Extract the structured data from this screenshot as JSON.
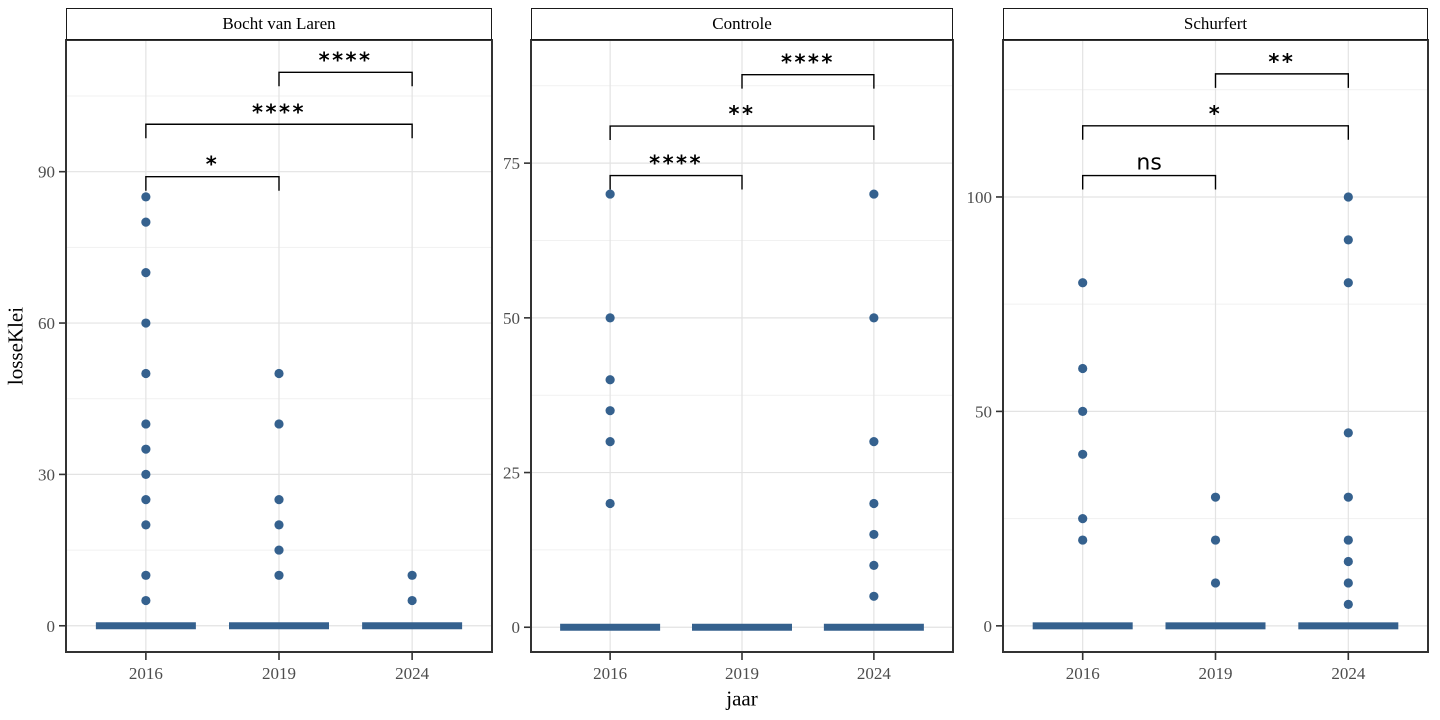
{
  "chart_data": {
    "type": "scatter",
    "title": "",
    "xlabel": "jaar",
    "ylabel": "losseKlei",
    "categories": [
      "2016",
      "2019",
      "2024"
    ],
    "legend": "none",
    "grid": "on",
    "note": "Faceted jitter plot; thick horizontal blue bar at y=0 in every year column represents many overlapping zero-valued observations; brackets show pairwise significance levels.",
    "colors": {
      "point": "#35618E",
      "grid_major": "#e3e3e3",
      "grid_minor": "#f1f1f1",
      "panel_border": "#333333",
      "bracket": "#000000",
      "tick_text": "#4d4d4d"
    },
    "facets": [
      {
        "title": "Bocht van Laren",
        "y_ticks": [
          0,
          30,
          60,
          90
        ],
        "y_minor_gridlines": [
          15,
          45,
          75,
          105
        ],
        "ylim": [
          -5.2,
          116.1
        ],
        "series": [
          {
            "year": "2016",
            "values": [
              85,
              80,
              70,
              60,
              50,
              40,
              35,
              30,
              25,
              20,
              10,
              5
            ],
            "zero_bar": true
          },
          {
            "year": "2019",
            "values": [
              50,
              40,
              25,
              20,
              15,
              10
            ],
            "zero_bar": true
          },
          {
            "year": "2024",
            "values": [
              10,
              5
            ],
            "zero_bar": true
          }
        ],
        "brackets": [
          {
            "group1": "2016",
            "group2": "2019",
            "label": "*",
            "y": 89
          },
          {
            "group1": "2016",
            "group2": "2024",
            "label": "****",
            "y": 99.4
          },
          {
            "group1": "2019",
            "group2": "2024",
            "label": "****",
            "y": 109.7
          }
        ]
      },
      {
        "title": "Controle",
        "y_ticks": [
          0,
          25,
          50,
          75
        ],
        "y_minor_gridlines": [
          12.5,
          37.5,
          62.5,
          87.5
        ],
        "ylim": [
          -4.0,
          94.9
        ],
        "series": [
          {
            "year": "2016",
            "values": [
              70,
              50,
              40,
              35,
              30,
              20
            ],
            "zero_bar": true
          },
          {
            "year": "2019",
            "values": [],
            "zero_bar": true
          },
          {
            "year": "2024",
            "values": [
              70,
              50,
              30,
              20,
              15,
              10,
              5
            ],
            "zero_bar": true
          }
        ],
        "brackets": [
          {
            "group1": "2016",
            "group2": "2019",
            "label": "****",
            "y": 73
          },
          {
            "group1": "2016",
            "group2": "2024",
            "label": "**",
            "y": 81
          },
          {
            "group1": "2019",
            "group2": "2024",
            "label": "****",
            "y": 89.3
          }
        ]
      },
      {
        "title": "Schurfert",
        "y_ticks": [
          0,
          50,
          100
        ],
        "y_minor_gridlines": [
          25,
          75,
          125
        ],
        "ylim": [
          -6.1,
          136.6
        ],
        "series": [
          {
            "year": "2016",
            "values": [
              80,
              60,
              50,
              40,
              25,
              20
            ],
            "zero_bar": true
          },
          {
            "year": "2019",
            "values": [
              30,
              20,
              10
            ],
            "zero_bar": true
          },
          {
            "year": "2024",
            "values": [
              100,
              90,
              80,
              45,
              30,
              20,
              15,
              10,
              5
            ],
            "zero_bar": true
          }
        ],
        "brackets": [
          {
            "group1": "2016",
            "group2": "2019",
            "label": "ns",
            "y": 105
          },
          {
            "group1": "2016",
            "group2": "2024",
            "label": "*",
            "y": 116.6
          },
          {
            "group1": "2019",
            "group2": "2024",
            "label": "**",
            "y": 128.7
          }
        ]
      }
    ]
  }
}
